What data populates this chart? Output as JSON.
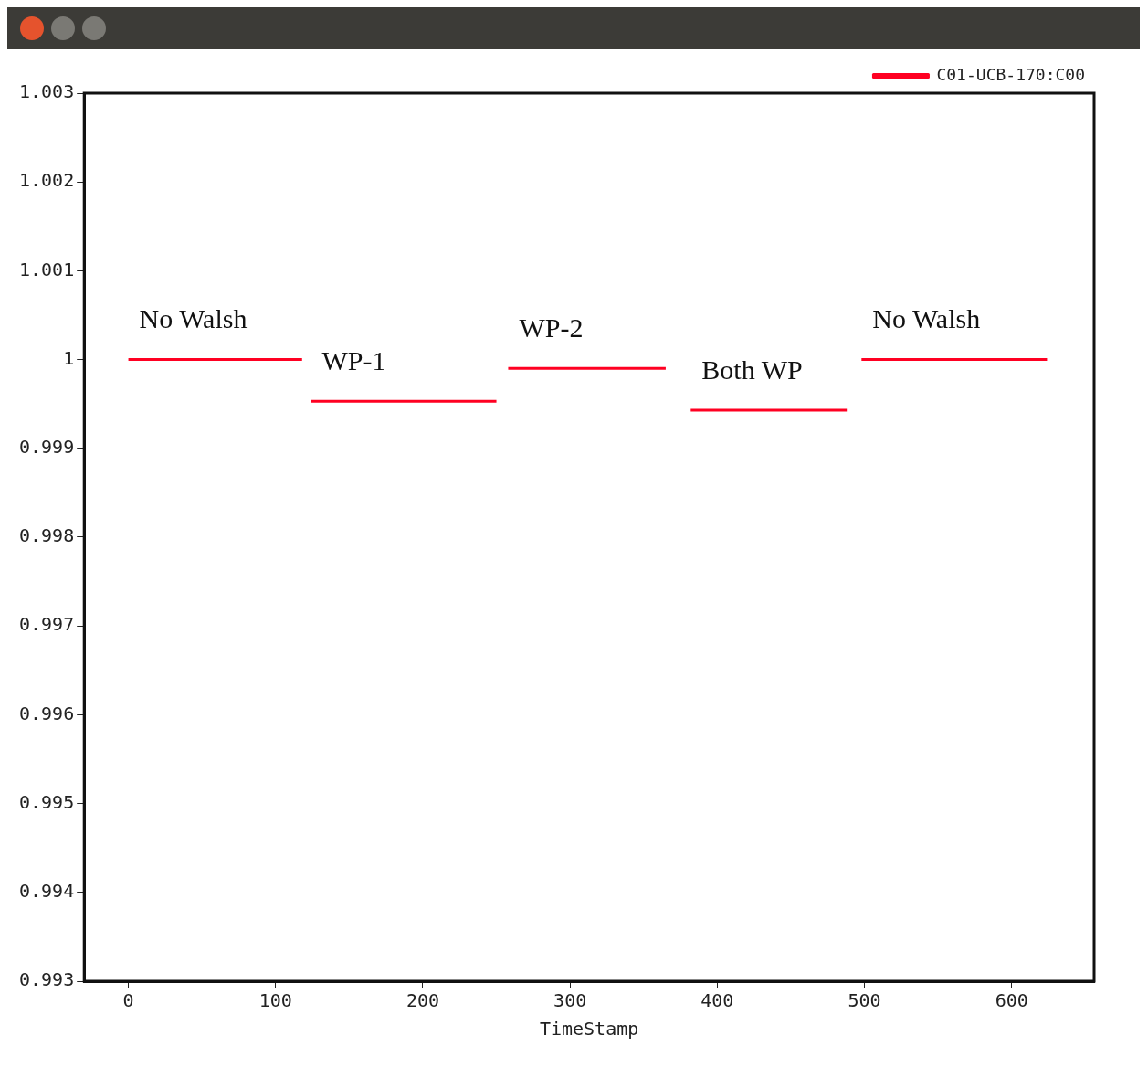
{
  "chart_data": {
    "type": "line",
    "xlabel": "TimeStamp",
    "series": [
      {
        "name": "C01-UCB-170:C00",
        "color": "#ff0022",
        "x": [
          0,
          118,
          null,
          124,
          250,
          null,
          258,
          365,
          null,
          382,
          488,
          null,
          498,
          624
        ],
        "values": [
          1.0,
          1.0,
          null,
          0.99953,
          0.99953,
          null,
          0.9999,
          0.9999,
          null,
          0.99943,
          0.99943,
          null,
          1.0,
          1.0
        ]
      }
    ],
    "xlim": [
      -30,
      656
    ],
    "xticks": [
      0,
      100,
      200,
      300,
      400,
      500,
      600
    ],
    "ylim": [
      0.993,
      1.003
    ],
    "yticks": [
      0.993,
      0.994,
      0.995,
      0.996,
      0.997,
      0.998,
      0.999,
      1,
      1.001,
      1.002,
      1.003
    ],
    "annotations": [
      "No Walsh",
      "WP-1",
      "WP-2",
      "Both WP",
      "No Walsh"
    ],
    "grid": false,
    "legend": "top right",
    "marker": "none",
    "line_style": "solid"
  }
}
